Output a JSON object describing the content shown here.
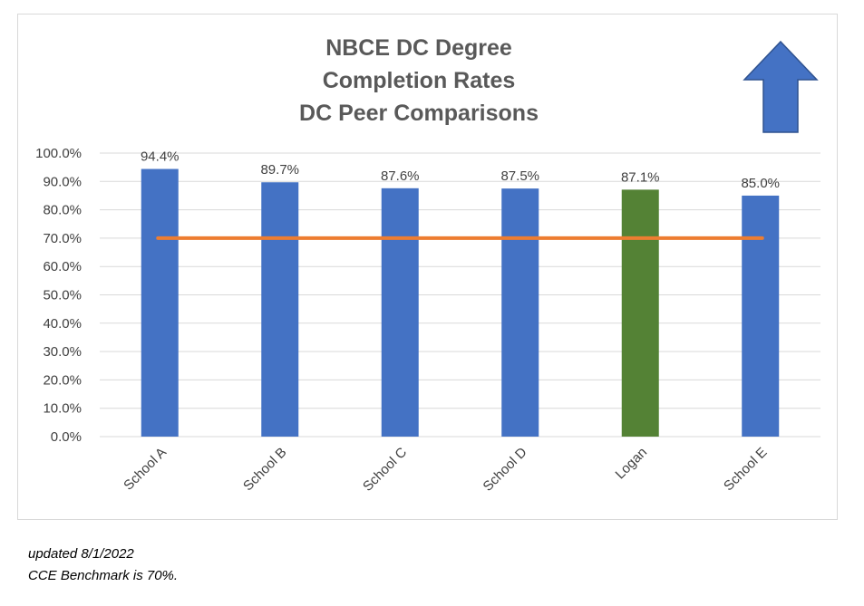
{
  "chart_data": {
    "type": "bar",
    "title_lines": [
      "NBCE DC Degree",
      "Completion Rates",
      "DC Peer Comparisons"
    ],
    "categories": [
      "School A",
      "School B",
      "School C",
      "School D",
      "Logan",
      "School E"
    ],
    "values": [
      94.4,
      89.7,
      87.6,
      87.5,
      87.1,
      85.0
    ],
    "value_labels": [
      "94.4%",
      "89.7%",
      "87.6%",
      "87.5%",
      "87.1%",
      "85.0%"
    ],
    "ylim": [
      0,
      100
    ],
    "yticks": [
      0,
      10,
      20,
      30,
      40,
      50,
      60,
      70,
      80,
      90,
      100
    ],
    "ytick_labels": [
      "0.0%",
      "10.0%",
      "20.0%",
      "30.0%",
      "40.0%",
      "50.0%",
      "60.0%",
      "70.0%",
      "80.0%",
      "90.0%",
      "100.0%"
    ],
    "benchmark": 70,
    "grid": true,
    "colors": {
      "bar": "#4472c4",
      "highlight_bar": "#548235",
      "benchmark_line": "#ed7d31",
      "arrow_fill": "#4472c4",
      "arrow_stroke": "#2f528f",
      "grid": "#d9d9d9"
    },
    "highlight_category": "Logan",
    "decoration": "up-arrow-icon"
  },
  "footnotes": [
    "updated 8/1/2022",
    "CCE Benchmark is 70%."
  ]
}
